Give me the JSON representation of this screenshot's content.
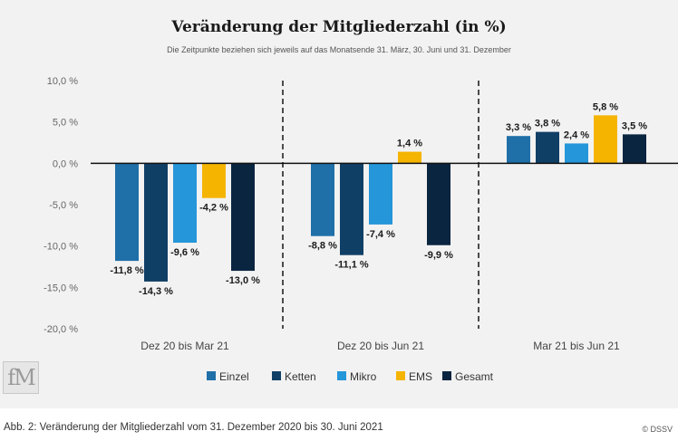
{
  "title": "Veränderung der Mitgliederzahl (in %)",
  "subtitle": "Die Zeitpunkte beziehen sich jeweils auf das Monatsende 31. März, 30. Juni und 31. Dezember",
  "logo_text": "fM",
  "caption": "Abb. 2: Veränderung der Mitgliederzahl vom 31. Dezember 2020 bis 30. Juni 2021",
  "copyright": "© DSSV",
  "chart_data": {
    "type": "bar",
    "title": "Veränderung der Mitgliederzahl (in %)",
    "categories": [
      "Dez 20 bis Mar 21",
      "Dez 20 bis Jun 21",
      "Mar 21 bis Jun 21"
    ],
    "series": [
      {
        "name": "Einzel",
        "color": "#1f6fa8",
        "values": [
          -11.8,
          -8.8,
          3.3
        ],
        "labels": [
          "-11,8 %",
          "-8,8 %",
          "3,3 %"
        ]
      },
      {
        "name": "Ketten",
        "color": "#103f66",
        "values": [
          -14.3,
          -11.1,
          3.8
        ],
        "labels": [
          "-14,3 %",
          "-11,1 %",
          "3,8 %"
        ]
      },
      {
        "name": "Mikro",
        "color": "#2596d9",
        "values": [
          -9.6,
          -7.4,
          2.4
        ],
        "labels": [
          "-9,6 %",
          "-7,4 %",
          "2,4 %"
        ]
      },
      {
        "name": "EMS",
        "color": "#f5b400",
        "values": [
          -4.2,
          1.4,
          5.8
        ],
        "labels": [
          "-4,2 %",
          "1,4 %",
          "5,8 %"
        ]
      },
      {
        "name": "Gesamt",
        "color": "#0a2540",
        "values": [
          -13.0,
          -9.9,
          3.5
        ],
        "labels": [
          "-13,0 %",
          "-9,9 %",
          "3,5 %"
        ]
      }
    ],
    "y_ticks": [
      10,
      5,
      0,
      -5,
      -10,
      -15,
      -20
    ],
    "y_tick_labels": [
      "10,0 %",
      "5,0 %",
      "0,0 %",
      "-5,0 %",
      "-10,0 %",
      "-15,0 %",
      "-20,0 %"
    ],
    "ylim": [
      -20,
      10
    ],
    "grid": false,
    "legend_position": "bottom-center"
  }
}
